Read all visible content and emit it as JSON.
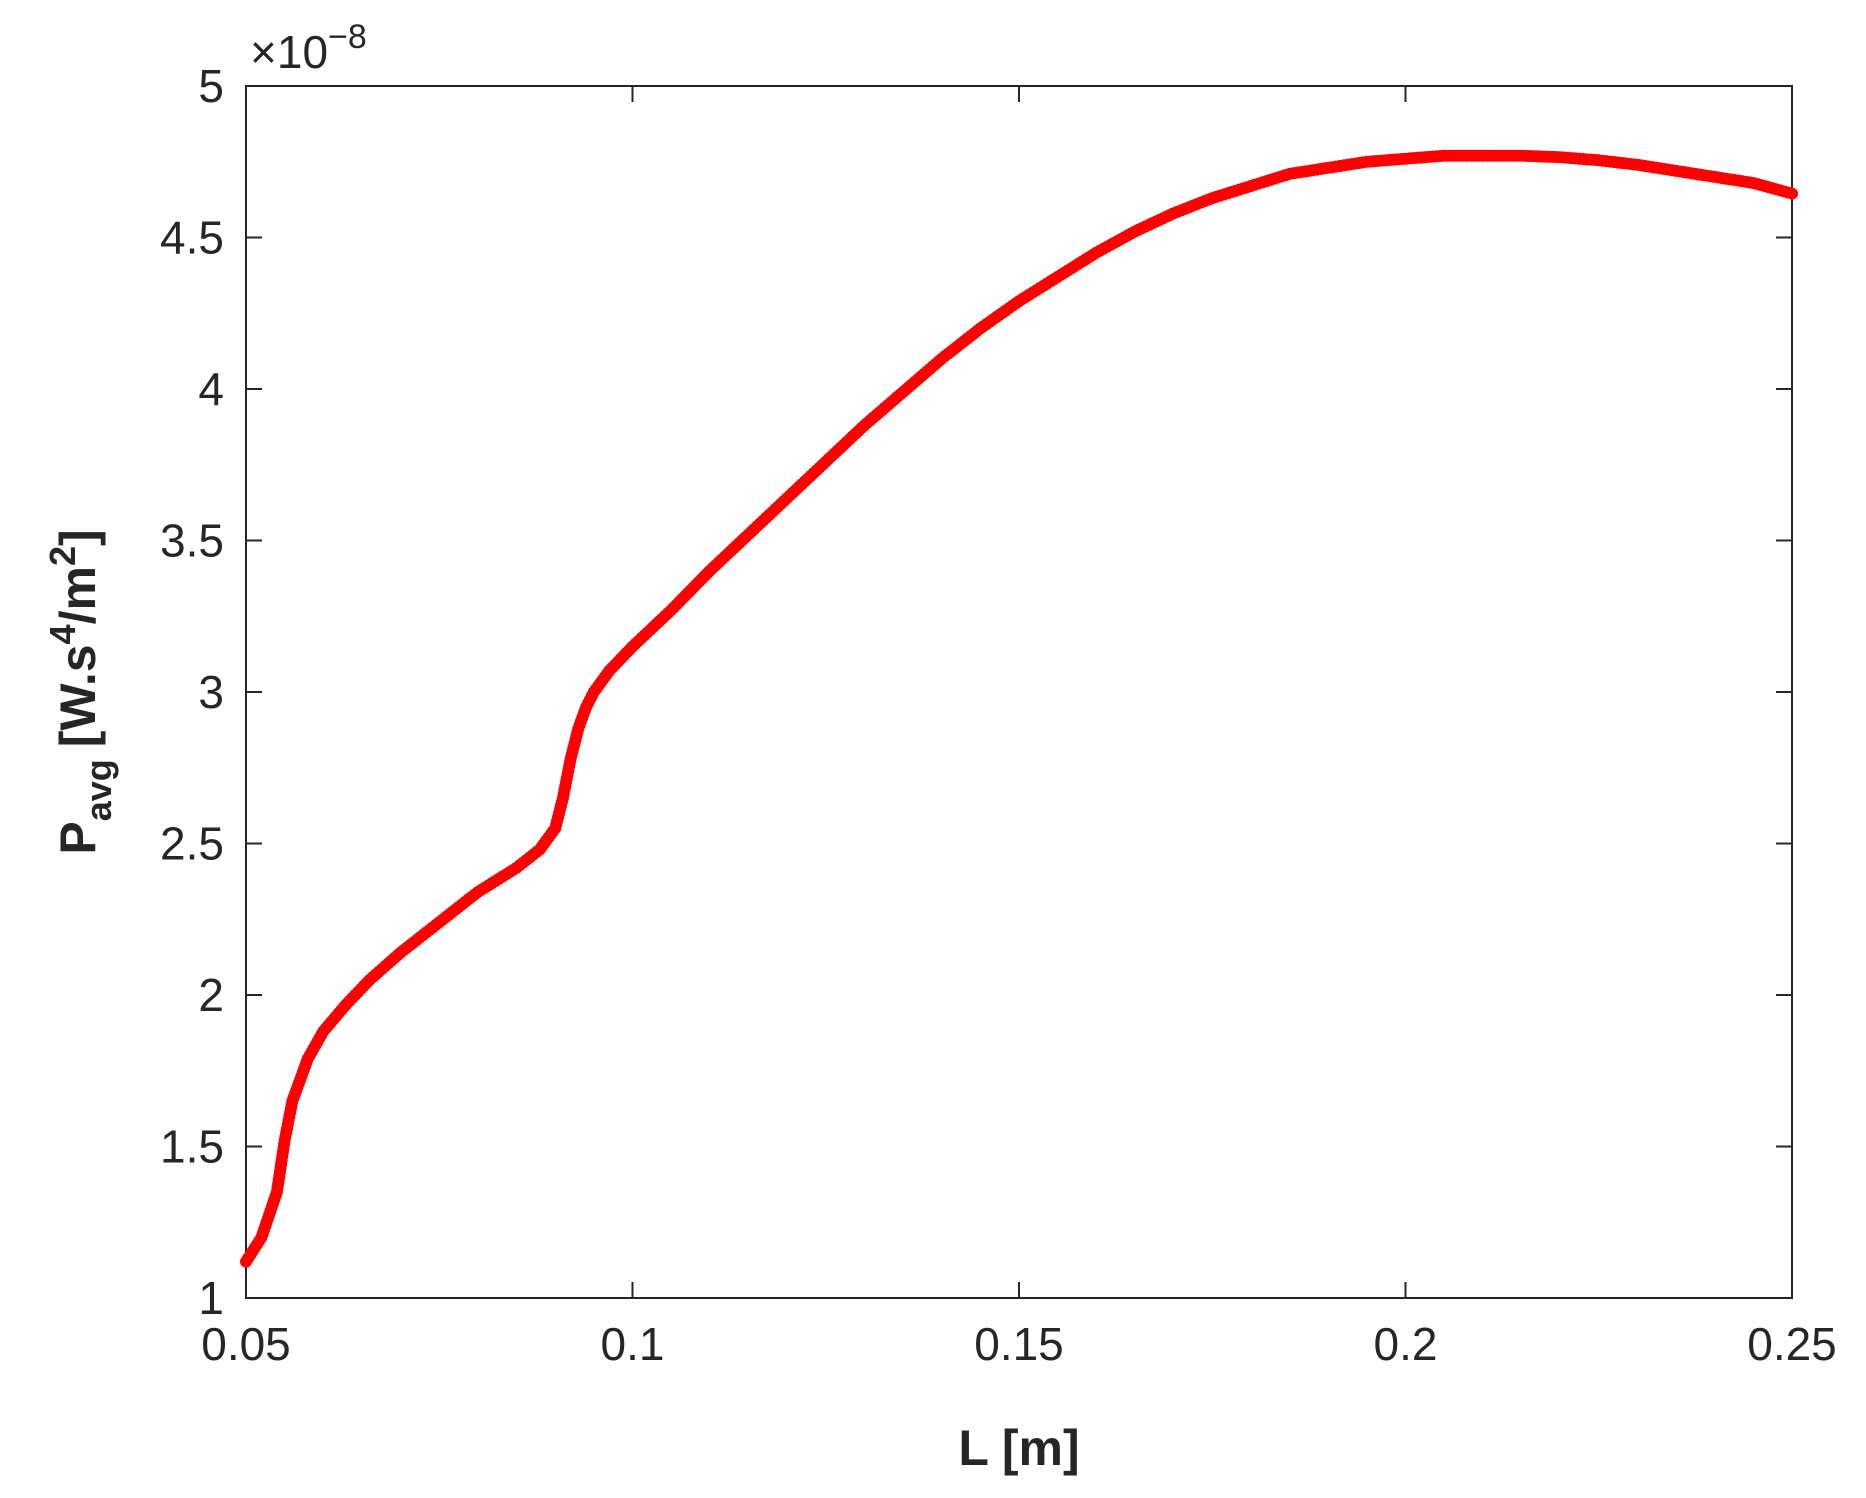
{
  "chart_data": {
    "type": "scatter",
    "title": "",
    "xlabel": "L [m]",
    "ylabel": {
      "main": "P",
      "subscript": "avg",
      "unit_prefix": "[W.s",
      "unit_sup1": "4",
      "unit_mid": "/m",
      "unit_sup2": "2",
      "unit_suffix": "]"
    },
    "y_exponent": {
      "multiplier": "×10",
      "power": "−8"
    },
    "xlim": [
      0.05,
      0.25
    ],
    "ylim": [
      1,
      5
    ],
    "xticks": [
      0.05,
      0.1,
      0.15,
      0.2,
      0.25
    ],
    "xtick_labels": [
      "0.05",
      "0.1",
      "0.15",
      "0.2",
      "0.25"
    ],
    "yticks": [
      1,
      1.5,
      2,
      2.5,
      3,
      3.5,
      4,
      4.5,
      5
    ],
    "ytick_labels": [
      "1",
      "1.5",
      "2",
      "2.5",
      "3",
      "3.5",
      "4",
      "4.5",
      "5"
    ],
    "grid": false,
    "marker_color": "#ff0000",
    "series": [
      {
        "x": [
          0.05,
          0.052,
          0.054,
          0.055,
          0.056,
          0.057,
          0.058,
          0.06,
          0.063,
          0.066,
          0.07,
          0.075,
          0.08,
          0.085,
          0.088,
          0.09,
          0.091,
          0.092,
          0.093,
          0.094,
          0.095,
          0.097,
          0.1,
          0.105,
          0.11,
          0.115,
          0.12,
          0.125,
          0.13,
          0.135,
          0.14,
          0.145,
          0.15,
          0.155,
          0.16,
          0.165,
          0.17,
          0.175,
          0.18,
          0.185,
          0.19,
          0.195,
          0.2,
          0.205,
          0.21,
          0.215,
          0.22,
          0.225,
          0.23,
          0.235,
          0.24,
          0.245,
          0.25
        ],
        "y": [
          1.12,
          1.2,
          1.35,
          1.52,
          1.65,
          1.72,
          1.79,
          1.88,
          1.97,
          2.05,
          2.14,
          2.24,
          2.34,
          2.42,
          2.48,
          2.55,
          2.65,
          2.78,
          2.88,
          2.95,
          3.0,
          3.07,
          3.15,
          3.27,
          3.4,
          3.52,
          3.64,
          3.76,
          3.88,
          3.99,
          4.1,
          4.2,
          4.29,
          4.37,
          4.45,
          4.52,
          4.58,
          4.63,
          4.67,
          4.71,
          4.73,
          4.75,
          4.76,
          4.77,
          4.77,
          4.77,
          4.765,
          4.755,
          4.74,
          4.72,
          4.7,
          4.68,
          4.645
        ]
      }
    ]
  }
}
